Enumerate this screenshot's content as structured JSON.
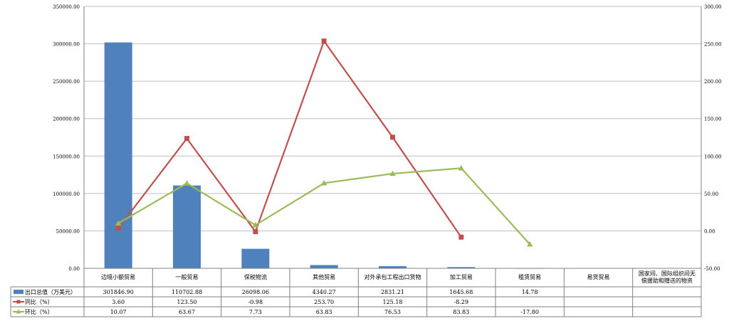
{
  "chart_data": {
    "type": "bar",
    "categories": [
      "边境小额贸易",
      "一般贸易",
      "保税物流",
      "其他贸易",
      "对外承包工程出口货物",
      "加工贸易",
      "租赁贸易",
      "易货贸易",
      "国家间、国际组织间无偿援助和赠送的物资"
    ],
    "category_label_lines": [
      [
        "边境小额贸易"
      ],
      [
        "一般贸易"
      ],
      [
        "保税物流"
      ],
      [
        "其他贸易"
      ],
      [
        "对外承包工程出口货物"
      ],
      [
        "加工贸易"
      ],
      [
        "租赁贸易"
      ],
      [
        "易货贸易"
      ],
      [
        "国家间、国际组织间无",
        "偿援助和赠送的物资"
      ]
    ],
    "series": [
      {
        "name": "出口总值（万美元）",
        "kind": "bar",
        "axis": "left",
        "color": "#4F81BD",
        "values": [
          301846.9,
          110702.88,
          26098.06,
          4340.27,
          2831.21,
          1645.68,
          14.78,
          null,
          null
        ],
        "labels": [
          "301846.90",
          "110702.88",
          "26098.06",
          "4340.27",
          "2831.21",
          "1645.68",
          "14.78",
          "",
          ""
        ]
      },
      {
        "name": "同比（%）",
        "kind": "line",
        "axis": "right",
        "color": "#C0504D",
        "marker": "square",
        "values": [
          3.6,
          123.5,
          -0.98,
          253.7,
          125.18,
          -8.29,
          null,
          null,
          null
        ],
        "labels": [
          "3.60",
          "123.50",
          "-0.98",
          "253.70",
          "125.18",
          "-8.29",
          "",
          "",
          ""
        ]
      },
      {
        "name": "环比（%）",
        "kind": "line",
        "axis": "right",
        "color": "#9BBB59",
        "marker": "triangle",
        "values": [
          10.07,
          63.67,
          7.73,
          63.83,
          76.53,
          83.83,
          -17.8,
          null,
          null
        ],
        "labels": [
          "10.07",
          "63.67",
          "7.73",
          "63.83",
          "76.53",
          "83.83",
          "-17.80",
          "",
          ""
        ]
      }
    ],
    "left_axis": {
      "min": 0,
      "max": 350000,
      "step": 50000,
      "ticks": [
        "0.00",
        "50000.00",
        "100000.00",
        "150000.00",
        "200000.00",
        "250000.00",
        "300000.00",
        "350000.00"
      ]
    },
    "right_axis": {
      "min": -50,
      "max": 300,
      "step": 50,
      "ticks": [
        "-50.00",
        "0.00",
        "50.00",
        "100.00",
        "150.00",
        "200.00",
        "250.00",
        "300.00"
      ]
    },
    "grid": true,
    "legend": "data-table-bottom"
  }
}
